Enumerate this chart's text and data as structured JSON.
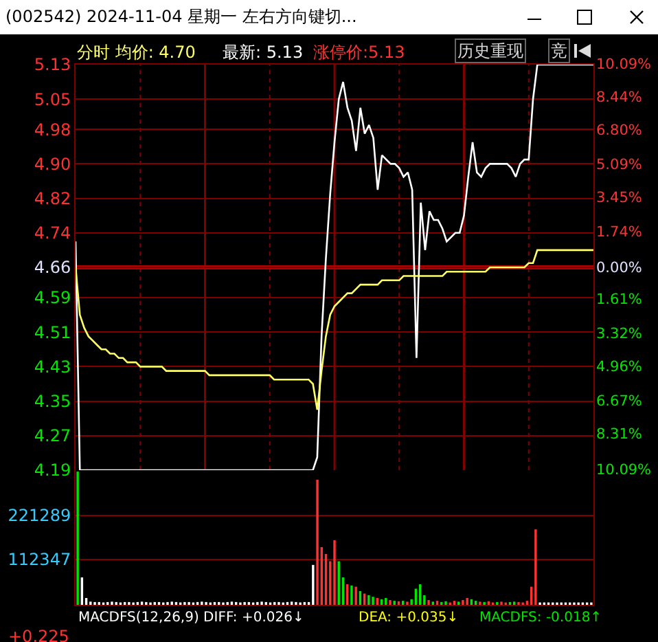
{
  "chart_data": [
    {
      "type": "line",
      "title": "(002542) 2024-11-04 星期一 左右方向键切...",
      "annotations": [
        "分时 均价: 4.70",
        "最新: 5.13",
        "涨停价:5.13",
        "历史重现",
        "竞"
      ],
      "categories": [
        null,
        null,
        null,
        null,
        null,
        null,
        null,
        null,
        null,
        null,
        null,
        null,
        null,
        null,
        null,
        null,
        null,
        null,
        null,
        null,
        null,
        null,
        null,
        null,
        null,
        null,
        null,
        null,
        null,
        null,
        null,
        null,
        null,
        null,
        null,
        null,
        null,
        null,
        null,
        null,
        null,
        null,
        null,
        null,
        null,
        null,
        null,
        null,
        null,
        null,
        null,
        null,
        null,
        null,
        null,
        null,
        null,
        null,
        null,
        null,
        null,
        null,
        null,
        null,
        null,
        null,
        null,
        null,
        null,
        null,
        null,
        null,
        null,
        null,
        null,
        null,
        null,
        null,
        null,
        null,
        null,
        null,
        null,
        null,
        null,
        null,
        null,
        null,
        null,
        null,
        null,
        null,
        null,
        null,
        null,
        null,
        null,
        null,
        null,
        null,
        null,
        null,
        null,
        null,
        null,
        null,
        null,
        null,
        null,
        null,
        null,
        null,
        null,
        null,
        null,
        null,
        null,
        null,
        null,
        null,
        null
      ],
      "series": [
        {
          "color": "#ffffff",
          "values": [
            4.72,
            4.19,
            4.19,
            4.19,
            4.19,
            4.19,
            4.19,
            4.19,
            4.19,
            4.19,
            4.19,
            4.19,
            4.19,
            4.19,
            4.19,
            4.19,
            4.19,
            4.19,
            4.19,
            4.19,
            4.19,
            4.19,
            4.19,
            4.19,
            4.19,
            4.19,
            4.19,
            4.19,
            4.19,
            4.19,
            4.19,
            4.19,
            4.19,
            4.19,
            4.19,
            4.19,
            4.19,
            4.19,
            4.19,
            4.19,
            4.19,
            4.19,
            4.19,
            4.19,
            4.19,
            4.19,
            4.19,
            4.19,
            4.19,
            4.19,
            4.19,
            4.19,
            4.19,
            4.19,
            4.19,
            4.19,
            4.22,
            4.5,
            4.68,
            4.83,
            4.95,
            5.05,
            5.09,
            5.03,
            5.0,
            4.93,
            5.03,
            4.97,
            4.99,
            4.96,
            4.84,
            4.92,
            4.91,
            4.9,
            4.9,
            4.89,
            4.87,
            4.88,
            4.84,
            4.45,
            4.81,
            4.7,
            4.79,
            4.77,
            4.77,
            4.75,
            4.72,
            4.73,
            4.74,
            4.74,
            4.78,
            4.87,
            4.95,
            4.88,
            4.87,
            4.89,
            4.9,
            4.9,
            4.9,
            4.9,
            4.9,
            4.89,
            4.87,
            4.9,
            4.91,
            4.91,
            5.05,
            5.13,
            5.13,
            5.13,
            5.13,
            5.13,
            5.13,
            5.13,
            5.13,
            5.13,
            5.13,
            5.13,
            5.13,
            5.13,
            5.13
          ]
        },
        {
          "color": "#ffff66",
          "values": [
            4.66,
            4.55,
            4.52,
            4.5,
            4.49,
            4.48,
            4.47,
            4.47,
            4.46,
            4.46,
            4.45,
            4.45,
            4.44,
            4.44,
            4.44,
            4.43,
            4.43,
            4.43,
            4.43,
            4.43,
            4.43,
            4.42,
            4.42,
            4.42,
            4.42,
            4.42,
            4.42,
            4.42,
            4.42,
            4.42,
            4.42,
            4.41,
            4.41,
            4.41,
            4.41,
            4.41,
            4.41,
            4.41,
            4.41,
            4.41,
            4.41,
            4.41,
            4.41,
            4.41,
            4.41,
            4.41,
            4.4,
            4.4,
            4.4,
            4.4,
            4.4,
            4.4,
            4.4,
            4.4,
            4.4,
            4.39,
            4.33,
            4.42,
            4.5,
            4.55,
            4.57,
            4.58,
            4.59,
            4.6,
            4.6,
            4.61,
            4.62,
            4.62,
            4.62,
            4.62,
            4.62,
            4.63,
            4.63,
            4.63,
            4.63,
            4.63,
            4.64,
            4.64,
            4.64,
            4.64,
            4.64,
            4.64,
            4.64,
            4.64,
            4.64,
            4.64,
            4.65,
            4.65,
            4.65,
            4.65,
            4.65,
            4.65,
            4.65,
            4.65,
            4.65,
            4.65,
            4.66,
            4.66,
            4.66,
            4.66,
            4.66,
            4.66,
            4.66,
            4.66,
            4.66,
            4.67,
            4.67,
            4.7,
            4.7,
            4.7,
            4.7,
            4.7,
            4.7,
            4.7,
            4.7,
            4.7,
            4.7,
            4.7,
            4.7,
            4.7,
            4.7
          ]
        }
      ],
      "ylim": [
        4.19,
        5.13
      ],
      "yticks": [
        5.13,
        5.05,
        4.98,
        {
          "value": 4.9,
          "label": "4.90"
        },
        4.82,
        4.74,
        4.66,
        4.59,
        4.51,
        4.43,
        4.35,
        4.27,
        4.19
      ],
      "y2lim": [
        -10.09,
        10.09
      ],
      "y2ticks": [
        {
          "value": 10.09,
          "label": "10.09%"
        },
        {
          "value": 8.44,
          "label": "8.44%"
        },
        {
          "value": 6.8,
          "label": "6.80%"
        },
        {
          "value": 5.09,
          "label": "5.09%"
        },
        {
          "value": 3.45,
          "label": "3.45%"
        },
        {
          "value": 1.74,
          "label": "1.74%"
        },
        {
          "value": 0,
          "label": "0.00%"
        },
        {
          "value": -1.61,
          "label": "1.61%"
        },
        {
          "value": -3.32,
          "label": "3.32%"
        },
        {
          "value": -4.96,
          "label": "4.96%"
        },
        {
          "value": -6.67,
          "label": "6.67%"
        },
        {
          "value": -8.31,
          "label": "8.31%"
        },
        {
          "value": -10.09,
          "label": "10.09%"
        }
      ],
      "ref_lines": [
        {
          "axis": "y",
          "value": 4.66,
          "color": "#b00000"
        }
      ],
      "grid": true
    },
    {
      "type": "bar",
      "annotations": [
        "MACDFS(12,26,9) DIFF: +0.026↓",
        "DEA: +0.035↓",
        "MACDFS: -0.018↑",
        "+0.225"
      ],
      "categories": [
        null,
        null,
        null,
        null,
        null,
        null,
        null,
        null,
        null,
        null,
        null,
        null,
        null,
        null,
        null,
        null,
        null,
        null,
        null,
        null,
        null,
        null,
        null,
        null,
        null,
        null,
        null,
        null,
        null,
        null,
        null,
        null,
        null,
        null,
        null,
        null,
        null,
        null,
        null,
        null,
        null,
        null,
        null,
        null,
        null,
        null,
        null,
        null,
        null,
        null,
        null,
        null,
        null,
        null,
        null,
        null,
        null,
        null,
        null,
        null,
        null,
        null,
        null,
        null,
        null,
        null,
        null,
        null,
        null,
        null,
        null,
        null,
        null,
        null,
        null,
        null,
        null,
        null,
        null,
        null,
        null,
        null,
        null,
        null,
        null,
        null,
        null,
        null,
        null,
        null,
        null,
        null,
        null,
        null,
        null,
        null,
        null,
        null,
        null,
        null,
        null,
        null,
        null,
        null,
        null,
        null,
        null,
        null,
        null,
        null,
        null,
        null,
        null,
        null,
        null,
        null,
        null,
        null,
        null,
        null,
        null
      ],
      "values": [
        330000,
        68000,
        17000,
        8000,
        7000,
        7000,
        6000,
        7000,
        8000,
        7000,
        6000,
        7000,
        7000,
        6000,
        7000,
        8000,
        7000,
        6000,
        7000,
        7000,
        6000,
        7000,
        8000,
        7000,
        6000,
        7000,
        7000,
        6000,
        7000,
        8000,
        7000,
        6000,
        7000,
        7000,
        6000,
        7000,
        8000,
        7000,
        6000,
        7000,
        7000,
        6000,
        7000,
        8000,
        7000,
        6000,
        7000,
        7000,
        6000,
        7000,
        8000,
        7000,
        6000,
        7000,
        7000,
        99000,
        310000,
        143000,
        126000,
        108000,
        160000,
        108000,
        68000,
        51000,
        48000,
        45000,
        34000,
        28000,
        24000,
        20000,
        17000,
        14000,
        17000,
        12000,
        10000,
        9000,
        10000,
        8000,
        14000,
        40000,
        51000,
        24000,
        12000,
        8000,
        10000,
        7000,
        9000,
        6000,
        10000,
        8000,
        12000,
        17000,
        14000,
        10000,
        8000,
        7000,
        9000,
        6000,
        7000,
        8000,
        6000,
        7000,
        8000,
        7000,
        6000,
        10000,
        45000,
        187000,
        6000,
        6000,
        6000,
        6000,
        6000,
        6000,
        6000,
        6000,
        6000,
        6000,
        6000,
        6000,
        6000
      ],
      "colors": [
        "#00e600",
        "#ffffff",
        "#ffffff",
        "#ffffff",
        "#ffffff",
        "#ffffff",
        "#ffffff",
        "#ffffff",
        "#ffffff",
        "#ffffff",
        "#ffffff",
        "#ffffff",
        "#ffffff",
        "#ffffff",
        "#ffffff",
        "#ffffff",
        "#ffffff",
        "#ffffff",
        "#ffffff",
        "#ffffff",
        "#ffffff",
        "#ffffff",
        "#ffffff",
        "#ffffff",
        "#ffffff",
        "#ffffff",
        "#ffffff",
        "#ffffff",
        "#ffffff",
        "#ffffff",
        "#ffffff",
        "#ffffff",
        "#ffffff",
        "#ffffff",
        "#ffffff",
        "#ffffff",
        "#ffffff",
        "#ffffff",
        "#ffffff",
        "#ffffff",
        "#ffffff",
        "#ffffff",
        "#ffffff",
        "#ffffff",
        "#ffffff",
        "#ffffff",
        "#ffffff",
        "#ffffff",
        "#ffffff",
        "#ffffff",
        "#ffffff",
        "#ffffff",
        "#ffffff",
        "#ffffff",
        "#ffffff",
        "#ffffff",
        "#ff3232",
        "#ff3232",
        "#ff3232",
        "#ff3232",
        "#ff3232",
        "#00e600",
        "#00e600",
        "#ff3232",
        "#00e600",
        "#ff3232",
        "#00e600",
        "#ff3232",
        "#00e600",
        "#00e600",
        "#ff3232",
        "#00e600",
        "#00e600",
        "#ff3232",
        "#00e600",
        "#ff3232",
        "#00e600",
        "#ff3232",
        "#00e600",
        "#00e600",
        "#00e600",
        "#00e600",
        "#ff3232",
        "#00e600",
        "#ff3232",
        "#00e600",
        "#00e600",
        "#ff3232",
        "#ff3232",
        "#00e600",
        "#ff3232",
        "#ff3232",
        "#00e600",
        "#00e600",
        "#ff3232",
        "#00e600",
        "#ff3232",
        "#ff3232",
        "#00e600",
        "#ff3232",
        "#ff3232",
        "#00e600",
        "#00e600",
        "#ff3232",
        "#ff3232",
        "#ff3232",
        "#ff3232",
        "#ff3232",
        "#ffffff",
        "#ffffff",
        "#ffffff",
        "#ffffff",
        "#ffffff",
        "#ffffff",
        "#ffffff",
        "#ffffff",
        "#ffffff",
        "#ffffff",
        "#ffffff",
        "#ffffff",
        "#ffffff"
      ],
      "ylim": [
        0,
        333600
      ],
      "yticks": [
        221289,
        112347
      ],
      "grid": "y"
    }
  ]
}
